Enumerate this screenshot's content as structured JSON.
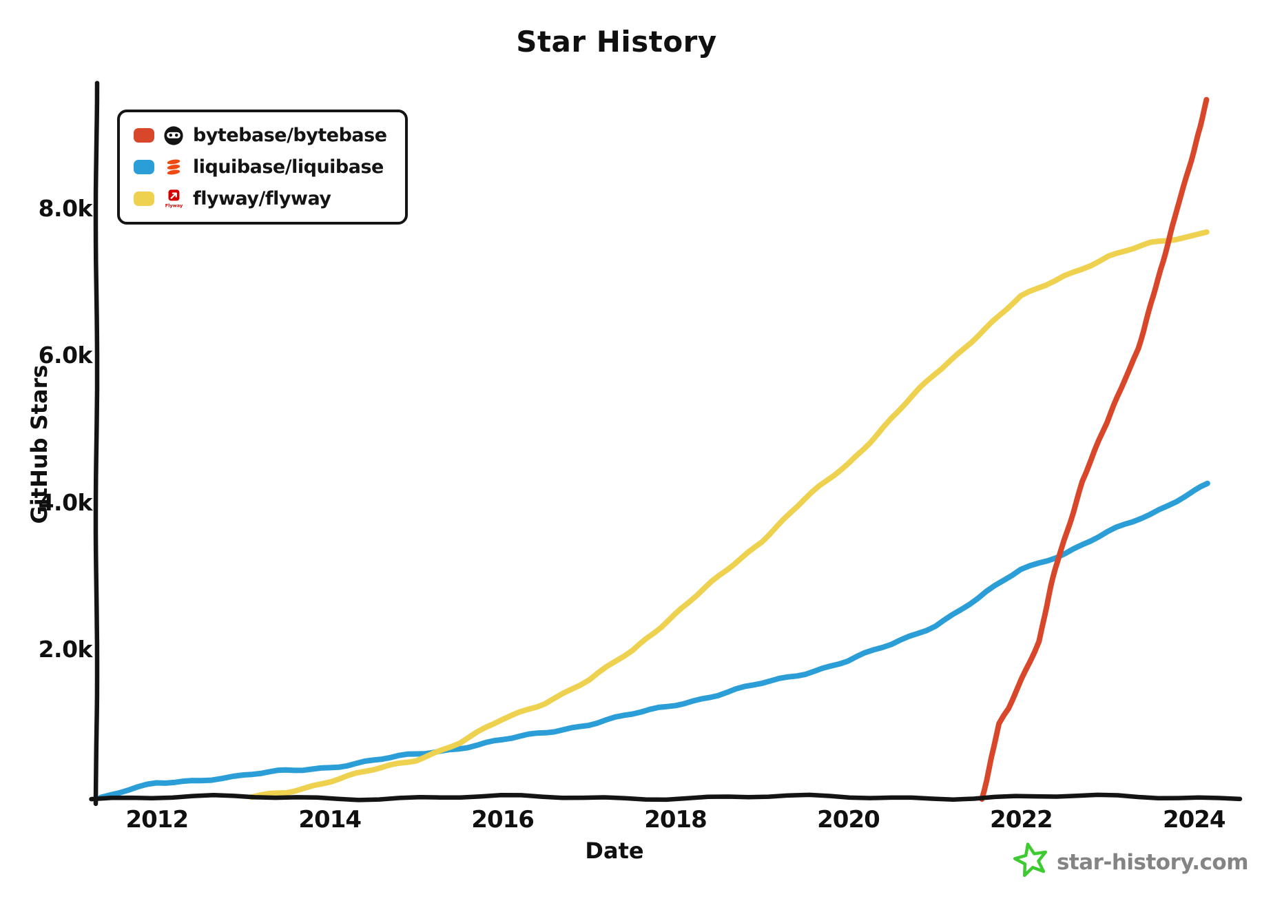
{
  "title": "Star History",
  "y_axis": {
    "label": "GitHub Stars",
    "ticks": [
      "2.0k",
      "4.0k",
      "6.0k",
      "8.0k"
    ]
  },
  "x_axis": {
    "label": "Date",
    "ticks": [
      "2012",
      "2014",
      "2016",
      "2018",
      "2020",
      "2022",
      "2024"
    ]
  },
  "legend": {
    "items": [
      {
        "label": "bytebase/bytebase",
        "color": "#d9472b",
        "icon": "bytebase-logo"
      },
      {
        "label": "liquibase/liquibase",
        "color": "#2b9ed7",
        "icon": "liquibase-logo"
      },
      {
        "label": "flyway/flyway",
        "color": "#eed14e",
        "icon": "flyway-logo",
        "icon_text": "Flyway"
      }
    ]
  },
  "footer": {
    "site": "star-history.com",
    "star_color": "#3ecb32",
    "text_color": "#848484"
  },
  "colors": {
    "axis": "#141414",
    "bytebase": "#d9472b",
    "liquibase": "#2b9ed7",
    "flyway": "#eed14e"
  },
  "chart_data": {
    "type": "line",
    "title": "Star History",
    "xlabel": "Date",
    "ylabel": "GitHub Stars",
    "x_unit": "decimal-year",
    "xlim": [
      2011.3,
      2024.5
    ],
    "ylim": [
      0,
      9700
    ],
    "x_ticks": [
      2012,
      2014,
      2016,
      2018,
      2020,
      2022,
      2024
    ],
    "y_ticks": [
      2000,
      4000,
      6000,
      8000
    ],
    "grid": false,
    "legend_position": "top-left",
    "style": "hand-drawn-xkcd",
    "series": [
      {
        "name": "bytebase/bytebase",
        "color": "#d9472b",
        "x": [
          2021.54,
          2021.6,
          2021.66,
          2021.75,
          2021.86,
          2022.0,
          2022.2,
          2022.4,
          2022.5,
          2022.7,
          2022.85,
          2023.0,
          2023.2,
          2023.35,
          2023.5,
          2023.65,
          2023.8,
          2023.9,
          2024.0,
          2024.08,
          2024.15
        ],
        "values": [
          0,
          250,
          570,
          990,
          1200,
          1600,
          2140,
          3100,
          3500,
          4300,
          4700,
          5100,
          5700,
          6100,
          6700,
          7300,
          8000,
          8400,
          8800,
          9150,
          9480
        ]
      },
      {
        "name": "liquibase/liquibase",
        "color": "#2b9ed7",
        "x": [
          2011.35,
          2012.0,
          2012.5,
          2013.0,
          2013.5,
          2014.0,
          2014.5,
          2015.0,
          2015.5,
          2016.0,
          2016.5,
          2017.0,
          2017.5,
          2018.0,
          2018.5,
          2019.0,
          2019.5,
          2020.0,
          2020.5,
          2021.0,
          2021.5,
          2022.0,
          2022.5,
          2023.0,
          2023.5,
          2024.0,
          2024.15
        ],
        "values": [
          0,
          190,
          250,
          300,
          360,
          420,
          500,
          590,
          680,
          780,
          890,
          1000,
          1130,
          1270,
          1400,
          1550,
          1700,
          1860,
          2080,
          2350,
          2700,
          3100,
          3330,
          3600,
          3850,
          4180,
          4270
        ]
      },
      {
        "name": "flyway/flyway",
        "color": "#eed14e",
        "x": [
          2013.1,
          2013.5,
          2014.0,
          2014.5,
          2015.0,
          2015.5,
          2016.0,
          2016.5,
          2017.0,
          2017.5,
          2018.0,
          2018.5,
          2019.0,
          2019.5,
          2020.0,
          2020.5,
          2021.0,
          2021.5,
          2022.0,
          2022.5,
          2023.0,
          2023.5,
          2024.0,
          2024.15
        ],
        "values": [
          0,
          80,
          230,
          370,
          520,
          750,
          1060,
          1300,
          1600,
          2000,
          2500,
          3000,
          3500,
          4050,
          4550,
          5150,
          5750,
          6300,
          6800,
          7100,
          7350,
          7530,
          7650,
          7700
        ]
      }
    ]
  }
}
